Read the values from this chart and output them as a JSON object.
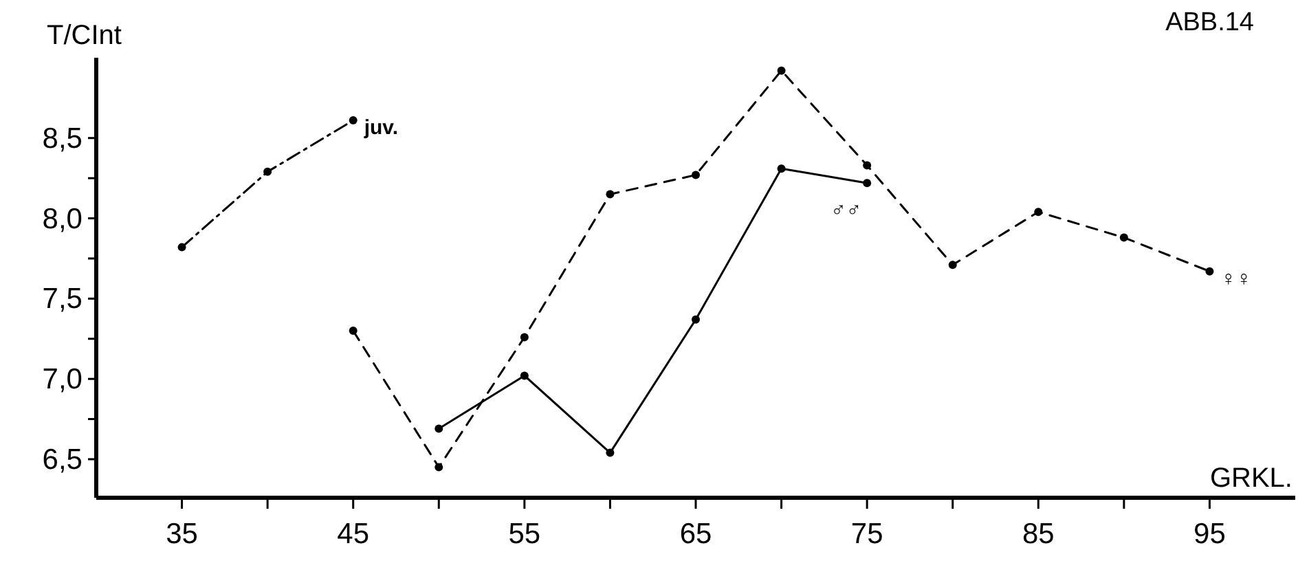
{
  "chart_data": {
    "type": "line",
    "title": "ABB.14",
    "ylabel": "T/CInt",
    "xlabel": "GRKL.",
    "xlim": [
      30,
      100
    ],
    "ylim": [
      6.26,
      9.0
    ],
    "xticks": [
      35,
      {
        "value": 40,
        "label": null
      },
      45,
      {
        "value": 50,
        "label": null
      },
      55,
      {
        "value": 60,
        "label": null
      },
      65,
      {
        "value": 70,
        "label": null
      },
      75,
      {
        "value": 80,
        "label": null
      },
      85,
      {
        "value": 90,
        "label": null
      },
      95
    ],
    "yticks": [
      {
        "value": 6.5,
        "label": "6,5"
      },
      {
        "value": 6.75,
        "label": null
      },
      {
        "value": 7.0,
        "label": "7,0"
      },
      {
        "value": 7.25,
        "label": null
      },
      {
        "value": 7.5,
        "label": "7,5"
      },
      {
        "value": 7.75,
        "label": null
      },
      {
        "value": 8.0,
        "label": "8,0"
      },
      {
        "value": 8.25,
        "label": null
      },
      {
        "value": 8.5,
        "label": "8,5"
      }
    ],
    "grid": false,
    "legend": false,
    "marker": "circle",
    "series": [
      {
        "name": "juv.",
        "color": "#000000",
        "line_style": "dotted",
        "x": [
          35,
          40,
          45
        ],
        "values": [
          7.82,
          8.29,
          8.61
        ]
      },
      {
        "name": "♀♀",
        "color": "#000000",
        "line_style": "dashed",
        "x": [
          45,
          50,
          55,
          60,
          65,
          70,
          75,
          80,
          85,
          90,
          95
        ],
        "values": [
          7.3,
          6.45,
          7.26,
          8.15,
          8.27,
          8.92,
          8.33,
          7.71,
          8.04,
          7.88,
          7.67
        ]
      },
      {
        "name": "♂♂",
        "color": "#000000",
        "line_style": "solid",
        "x": [
          50,
          55,
          60,
          65,
          70,
          75
        ],
        "values": [
          6.69,
          7.02,
          6.54,
          7.37,
          8.31,
          8.22
        ]
      }
    ]
  }
}
